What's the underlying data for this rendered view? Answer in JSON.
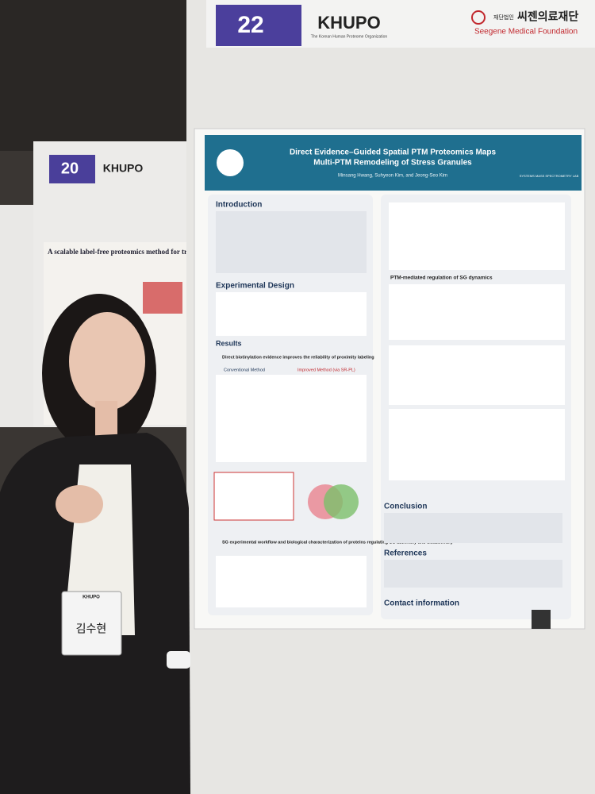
{
  "booth": {
    "number": "22",
    "logo": "KHUPO",
    "logo_sub": "The Korean Human Proteome Organization",
    "sponsor_kr": "씨젠의료재단",
    "sponsor_prefix": "재단법인",
    "sponsor_en": "Seegene Medical Foundation"
  },
  "poster": {
    "title_line1": "Direct Evidence–Guided Spatial PTM Proteomics Maps",
    "title_line2": "Multi-PTM Remodeling of Stress Granules",
    "authors": "Minsang Hwang, Suhyeon Kim, and Jeong-Seo Kim",
    "lab": "SYSTEMS MASS SPECTROMETRY LAB",
    "sections": [
      "Introduction",
      "Experimental Design",
      "Results",
      "Conclusion",
      "References",
      "Contact information"
    ],
    "results_heading": "Direct biotinylation evidence improves the reliability of proximity labeling",
    "method_a": "Conventional Method",
    "method_b": "Improved Method (via SR-PL)",
    "ptm_heading": "PTM-mediated regulation of SG dynamics",
    "sg_heading": "SG experimental workflow and biological characterization of proteins regulating SG assembly and disassembly"
  },
  "left_booth": {
    "number": "20",
    "logo": "KHUPO",
    "title": "A scalable label-free proteomics method for trace"
  },
  "badge": {
    "logo": "KHUPO",
    "name": "김수현"
  }
}
